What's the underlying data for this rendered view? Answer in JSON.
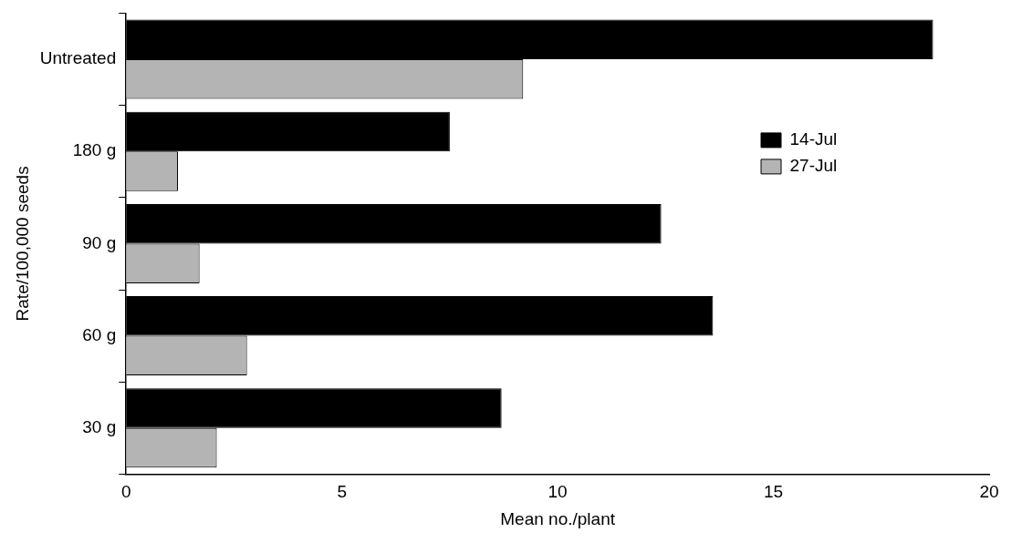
{
  "chart_data": {
    "type": "bar",
    "orientation": "horizontal",
    "xlabel": "Mean no./plant",
    "ylabel": "Rate/100,000 seeds",
    "categories": [
      "Untreated",
      "180 g",
      "90 g",
      "60 g",
      "30 g"
    ],
    "series": [
      {
        "name": "14-Jul",
        "color": "#000000",
        "values": [
          18.7,
          7.5,
          12.4,
          13.6,
          8.7
        ]
      },
      {
        "name": "27-Jul",
        "color": "#b4b4b4",
        "values": [
          9.2,
          1.2,
          1.7,
          2.8,
          2.1
        ]
      }
    ],
    "xlim": [
      0,
      20
    ],
    "xticks": [
      0,
      5,
      10,
      15,
      20
    ],
    "grid": false,
    "legend": "top right"
  }
}
